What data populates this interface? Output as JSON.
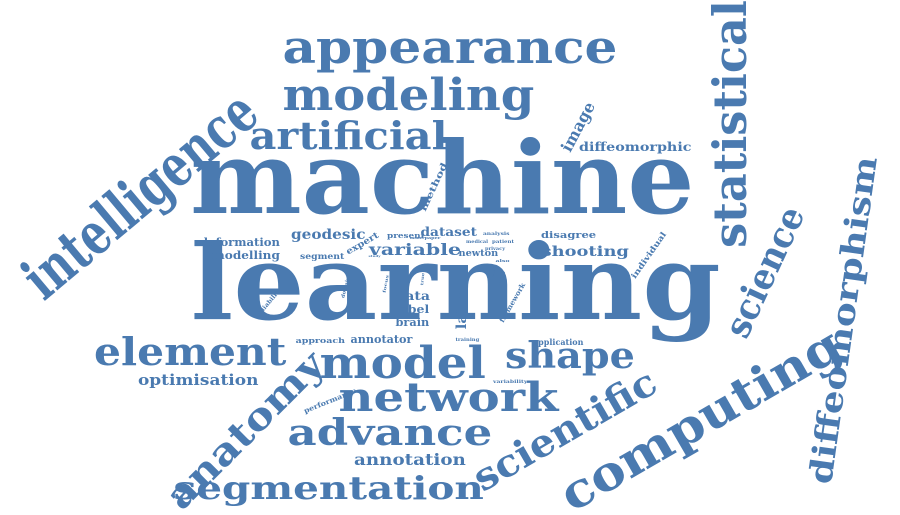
{
  "palette": {
    "word": "#4a7ab0",
    "background": "#ffffff"
  },
  "words": [
    "machine",
    "learning",
    "intelligence",
    "appearance",
    "modeling",
    "artificial",
    "statistical",
    "science",
    "diffeomorphism",
    "computing",
    "scientific",
    "anatomy",
    "element",
    "model",
    "shape",
    "network",
    "advance",
    "segmentation",
    "annotation",
    "optimisation",
    "diffeomorphic",
    "image",
    "geodesic",
    "variable",
    "deformation",
    "modelling",
    "dataset",
    "shooting",
    "disagree",
    "newton",
    "segment",
    "expert",
    "present",
    "analysis",
    "medical",
    "patient",
    "privacy",
    "method",
    "individual",
    "data",
    "label",
    "brain",
    "latent",
    "framework",
    "gain",
    "annotator",
    "approach",
    "application",
    "training",
    "variability",
    "performance",
    "reliability",
    "domain",
    "paper",
    "model",
    "study",
    "focus",
    "true",
    "also",
    "task"
  ]
}
